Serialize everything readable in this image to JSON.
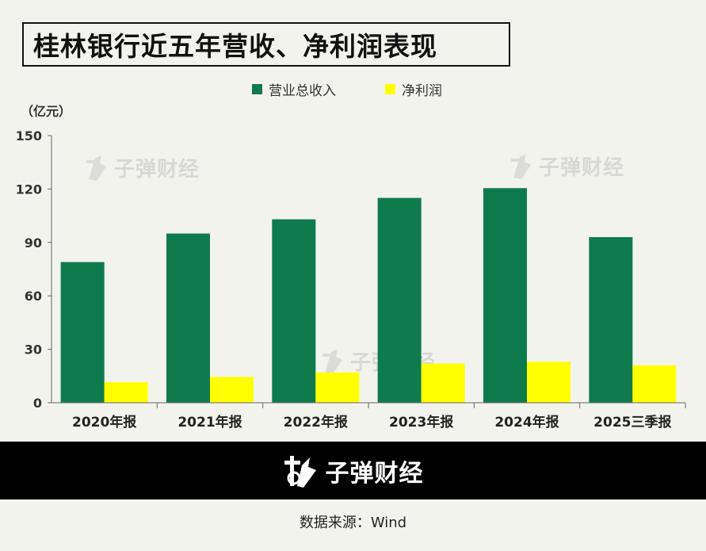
{
  "title": "桂林银行近五年营收、净利润表现",
  "unit_label": "（亿元）",
  "brand": "子弹财经",
  "source": "数据来源：Wind",
  "colors": {
    "revenue": "#0e7b4d",
    "net_profit": "#ffff00",
    "background": "#f3f3ee"
  },
  "chart_data": {
    "type": "bar",
    "categories": [
      "2020年报",
      "2021年报",
      "2022年报",
      "2023年报",
      "2024年报",
      "2025三季报"
    ],
    "series": [
      {
        "name": "营业总收入",
        "values": [
          79,
          95,
          103,
          115,
          120.5,
          93
        ]
      },
      {
        "name": "净利润",
        "values": [
          11.5,
          14.5,
          17,
          22,
          23,
          21
        ]
      }
    ],
    "ylim": [
      0,
      150
    ],
    "yticks": [
      0,
      30,
      60,
      90,
      120,
      150
    ],
    "ylabel": "（亿元）",
    "legend": "top-center",
    "grid": false
  }
}
